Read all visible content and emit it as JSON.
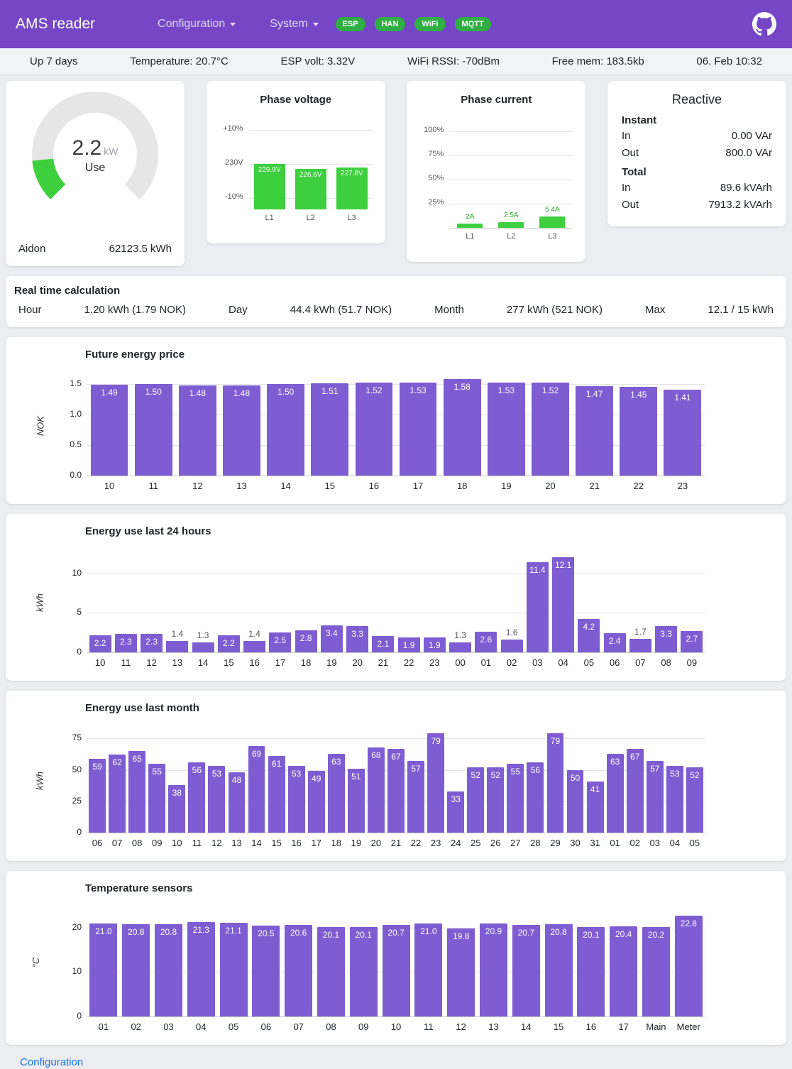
{
  "colors": {
    "header_bg": "#7546c6",
    "badge_green": "#2fae43",
    "bar_purple": "#7e5cd2",
    "bar_green": "#3ecf3e",
    "link_blue": "#1a73e8"
  },
  "header": {
    "title": "AMS reader",
    "menu_configuration": "Configuration",
    "menu_system": "System",
    "badges": [
      {
        "label": "ESP"
      },
      {
        "label": "HAN"
      },
      {
        "label": "WiFi"
      },
      {
        "label": "MQTT"
      }
    ]
  },
  "statusbar": {
    "uptime": "Up 7 days",
    "temperature": "Temperature: 20.7°C",
    "esp_volt": "ESP volt: 3.32V",
    "wifi_rssi": "WiFi RSSI: -70dBm",
    "free_mem": "Free mem: 183.5kb",
    "datetime": "06. Feb 10:32"
  },
  "gauge": {
    "value": "2.2",
    "unit": "kW",
    "label": "Use",
    "fraction": 0.147,
    "meter_name": "Aidon",
    "total": "62123.5 kWh"
  },
  "reactive": {
    "title": "Reactive",
    "instant_label": "Instant",
    "total_label": "Total",
    "rows": [
      {
        "label": "In",
        "value": "0.00 VAr"
      },
      {
        "label": "Out",
        "value": "800.0 VAr"
      },
      {
        "label": "In",
        "value": "89.6 kVArh"
      },
      {
        "label": "Out",
        "value": "7913.2 kVArh"
      }
    ]
  },
  "realtime": {
    "title": "Real time calculation",
    "items": [
      {
        "label": "Hour",
        "value": "1.20 kWh (1.79 NOK)"
      },
      {
        "label": "Day",
        "value": "44.4 kWh (51.7 NOK)"
      },
      {
        "label": "Month",
        "value": "277 kWh (521 NOK)"
      },
      {
        "label": "Max",
        "value": "12.1 / 15 kWh"
      }
    ]
  },
  "footer": {
    "configuration_link": "Configuration"
  },
  "chart_data": [
    {
      "type": "bar",
      "title": "Phase voltage",
      "categories": [
        "L1",
        "L2",
        "L3"
      ],
      "values": [
        229.9,
        226.6,
        227.8
      ],
      "value_labels": [
        "229.9V",
        "226.6V",
        "227.8V"
      ],
      "ytick_labels": [
        "+10%",
        "230V",
        "-10%"
      ],
      "ylim": [
        207,
        253
      ]
    },
    {
      "type": "bar",
      "title": "Phase current",
      "categories": [
        "L1",
        "L2",
        "L3"
      ],
      "values": [
        2,
        2.5,
        5.4
      ],
      "value_labels": [
        "2A",
        "2.5A",
        "5.4A"
      ],
      "ytick_labels": [
        "100%",
        "75%",
        "50%",
        "25%"
      ]
    },
    {
      "type": "bar",
      "title": "Future energy price",
      "ylabel": "NOK",
      "categories": [
        "10",
        "11",
        "12",
        "13",
        "14",
        "15",
        "16",
        "17",
        "18",
        "19",
        "20",
        "21",
        "22",
        "23"
      ],
      "values": [
        1.49,
        1.5,
        1.48,
        1.48,
        1.5,
        1.51,
        1.52,
        1.53,
        1.58,
        1.53,
        1.52,
        1.47,
        1.45,
        1.41
      ],
      "value_labels": [
        "1.49",
        "1.50",
        "1.48",
        "1.48",
        "1.50",
        "1.51",
        "1.52",
        "1.53",
        "1.58",
        "1.53",
        "1.52",
        "1.47",
        "1.45",
        "1.41"
      ],
      "yticks": [
        0,
        0.5,
        1.0,
        1.5
      ],
      "ytick_labels": [
        "0.0",
        "0.5",
        "1.0",
        "1.5"
      ],
      "ylim": [
        0,
        1.63
      ]
    },
    {
      "type": "bar",
      "title": "Energy use last 24 hours",
      "ylabel": "kWh",
      "categories": [
        "10",
        "11",
        "12",
        "13",
        "14",
        "15",
        "16",
        "17",
        "18",
        "19",
        "20",
        "21",
        "22",
        "23",
        "00",
        "01",
        "02",
        "03",
        "04",
        "05",
        "06",
        "07",
        "08",
        "09"
      ],
      "values": [
        2.2,
        2.3,
        2.3,
        1.4,
        1.3,
        2.2,
        1.4,
        2.5,
        2.8,
        3.4,
        3.3,
        2.1,
        1.9,
        1.9,
        1.3,
        2.6,
        1.6,
        11.4,
        12.1,
        4.2,
        2.4,
        1.7,
        3.3,
        2.7
      ],
      "value_labels": [
        "2.2",
        "2.3",
        "2.3",
        "1.4",
        "1.3",
        "2.2",
        "1.4",
        "2.5",
        "2.8",
        "3.4",
        "3.3",
        "2.1",
        "1.9",
        "1.9",
        "1.3",
        "2.6",
        "1.6",
        "11.4",
        "12.1",
        "4.2",
        "2.4",
        "1.7",
        "3.3",
        "2.7"
      ],
      "yticks": [
        0,
        5,
        10
      ],
      "ytick_labels": [
        "0",
        "5",
        "10"
      ],
      "ylim": [
        0,
        12.6
      ]
    },
    {
      "type": "bar",
      "title": "Energy use last month",
      "ylabel": "kWh",
      "categories": [
        "06",
        "07",
        "08",
        "09",
        "10",
        "11",
        "12",
        "13",
        "14",
        "15",
        "16",
        "17",
        "18",
        "19",
        "20",
        "21",
        "22",
        "23",
        "24",
        "25",
        "26",
        "27",
        "28",
        "29",
        "30",
        "31",
        "01",
        "02",
        "03",
        "04",
        "05"
      ],
      "values": [
        59,
        62,
        65,
        55,
        38,
        56,
        53,
        48,
        69,
        61,
        53,
        49,
        63,
        51,
        68,
        67,
        57,
        79,
        33,
        52,
        52,
        55,
        56,
        79,
        50,
        41,
        63,
        67,
        57,
        53,
        52
      ],
      "value_labels": [
        "59",
        "62",
        "65",
        "55",
        "38",
        "56",
        "53",
        "48",
        "69",
        "61",
        "53",
        "49",
        "63",
        "51",
        "68",
        "67",
        "57",
        "79",
        "33",
        "52",
        "52",
        "55",
        "56",
        "79",
        "50",
        "41",
        "63",
        "67",
        "57",
        "53",
        "52"
      ],
      "yticks": [
        0,
        25,
        50,
        75
      ],
      "ytick_labels": [
        "0",
        "25",
        "50",
        "75"
      ],
      "ylim": [
        0,
        82
      ]
    },
    {
      "type": "bar",
      "title": "Temperature sensors",
      "ylabel": "°C",
      "categories": [
        "01",
        "02",
        "03",
        "04",
        "05",
        "06",
        "07",
        "08",
        "09",
        "10",
        "11",
        "12",
        "13",
        "14",
        "15",
        "16",
        "17",
        "Main",
        "Meter"
      ],
      "values": [
        21.0,
        20.8,
        20.8,
        21.3,
        21.1,
        20.5,
        20.6,
        20.1,
        20.1,
        20.7,
        21.0,
        19.8,
        20.9,
        20.7,
        20.8,
        20.1,
        20.4,
        20.2,
        22.8
      ],
      "value_labels": [
        "21.0",
        "20.8",
        "20.8",
        "21.3",
        "21.1",
        "20.5",
        "20.6",
        "20.1",
        "20.1",
        "20.7",
        "21.0",
        "19.8",
        "20.9",
        "20.7",
        "20.8",
        "20.1",
        "20.4",
        "20.2",
        "22.8"
      ],
      "yticks": [
        0,
        10,
        20
      ],
      "ytick_labels": [
        "0",
        "10",
        "20"
      ],
      "ylim": [
        0,
        24
      ]
    }
  ]
}
